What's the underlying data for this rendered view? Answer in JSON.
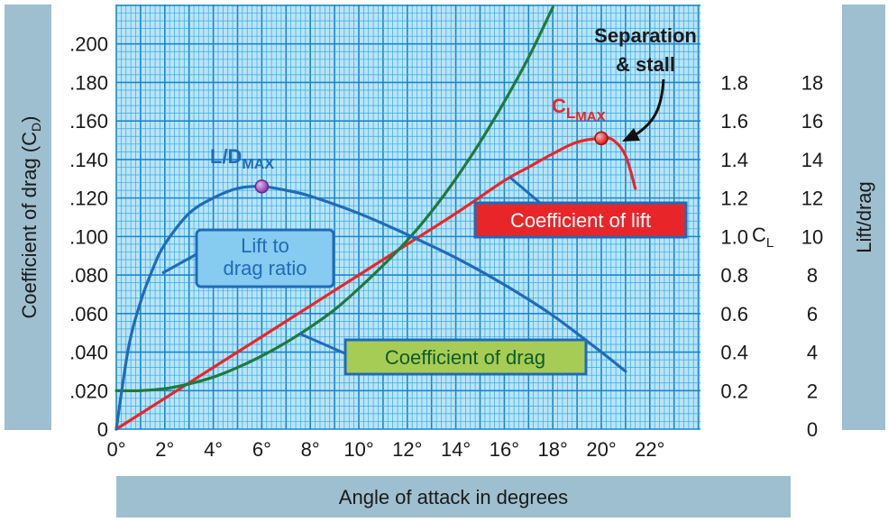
{
  "chart_data": {
    "type": "line",
    "xlabel": "Angle of attack in degrees",
    "left_axis_label": "Coefficient of drag (C",
    "left_axis_label_sub": "D",
    "left_axis_label_end": ")",
    "right_axis_label": "Lift/drag",
    "cl_axis_label": "C",
    "cl_axis_label_sub": "L",
    "x_ticks": [
      "0°",
      "2°",
      "4°",
      "6°",
      "8°",
      "10°",
      "12°",
      "14°",
      "16°",
      "18°",
      "20°",
      "22°"
    ],
    "cd_ticks": [
      "0",
      ".020",
      ".040",
      ".060",
      ".080",
      ".100",
      ".120",
      ".140",
      ".160",
      ".180",
      ".200"
    ],
    "cl_ticks": [
      "0.2",
      "0.4",
      "0.6",
      "0.8",
      "1.0",
      "1.2",
      "1.4",
      "1.6",
      "1.8"
    ],
    "ld_ticks": [
      "0",
      "2",
      "4",
      "6",
      "8",
      "10",
      "12",
      "14",
      "16",
      "18"
    ],
    "xlim": [
      0,
      23.5
    ],
    "cd_lim": [
      0,
      0.22
    ],
    "cl_lim": [
      0,
      2.2
    ],
    "ld_lim": [
      0,
      22
    ],
    "series": [
      {
        "name": "Coefficient of lift",
        "axis": "cl",
        "color": "#e8262a",
        "x": [
          0,
          2,
          4,
          6,
          8,
          10,
          12,
          14,
          16,
          17,
          18,
          19,
          20,
          20.5,
          21,
          21.4
        ],
        "y": [
          0,
          0.16,
          0.32,
          0.48,
          0.64,
          0.8,
          0.96,
          1.12,
          1.29,
          1.36,
          1.43,
          1.49,
          1.51,
          1.5,
          1.42,
          1.25
        ]
      },
      {
        "name": "Coefficient of drag",
        "axis": "cd",
        "color": "#1e7a3c",
        "x": [
          0,
          1,
          2,
          3,
          4,
          5,
          6,
          7,
          8,
          9,
          10,
          11,
          12,
          13,
          14,
          15,
          16,
          17,
          18
        ],
        "y": [
          0.02,
          0.02,
          0.021,
          0.0235,
          0.027,
          0.032,
          0.038,
          0.045,
          0.053,
          0.062,
          0.073,
          0.085,
          0.098,
          0.113,
          0.13,
          0.149,
          0.17,
          0.193,
          0.219
        ]
      },
      {
        "name": "Lift to drag ratio",
        "axis": "ld",
        "color": "#1f6bb8",
        "x": [
          0,
          0.5,
          1,
          1.5,
          2,
          3,
          4,
          5,
          6,
          7,
          8,
          10,
          12,
          14,
          16,
          18,
          20,
          21
        ],
        "y": [
          0,
          4.2,
          6.6,
          8.3,
          9.6,
          11.2,
          12,
          12.5,
          12.6,
          12.4,
          12.1,
          11.2,
          10.1,
          8.9,
          7.5,
          5.9,
          4.0,
          3.0
        ]
      }
    ],
    "annotations": {
      "ld_max_label": "L/D",
      "ld_max_sub": "MAX",
      "ld_max_point": {
        "x": 6,
        "y": 12.6
      },
      "cl_max_label": "C",
      "cl_max_sub1": "L",
      "cl_max_sub2": "MAX",
      "cl_max_point": {
        "x": 20,
        "y": 1.51
      },
      "separation_line1": "Separation",
      "separation_line2": "& stall",
      "ld_box": [
        "Lift to",
        "drag ratio"
      ],
      "cd_box": "Coefficient of drag",
      "cl_box": "Coefficient of lift"
    },
    "grid": true
  },
  "colors": {
    "grid_bg": "#b9e4f7",
    "grid_minor": "#34a9e4",
    "grid_major": "#1b86c9",
    "axis_panel": "#9ebfcf",
    "cl_box_fill": "#e8262a",
    "cd_box_fill": "#a7cc55",
    "ld_box_fill": "#86cbf0"
  }
}
